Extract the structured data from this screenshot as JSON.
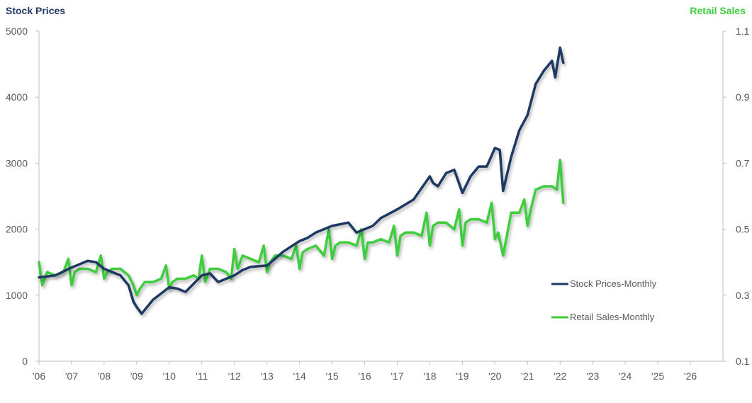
{
  "chart_data": {
    "type": "line",
    "left_axis_title": "Stock Prices",
    "right_axis_title": "Retail Sales",
    "left_ylim": [
      0,
      5000
    ],
    "right_ylim": [
      0.1,
      1.1
    ],
    "left_ticks": [
      "0",
      "1000",
      "2000",
      "3000",
      "4000",
      "5000"
    ],
    "right_ticks": [
      "0.1",
      "0.3",
      "0.5",
      "0.7",
      "0.9",
      "1.1"
    ],
    "x_ticks": [
      "'06",
      "'07",
      "'08",
      "'09",
      "'10",
      "'11",
      "'12",
      "'13",
      "'14",
      "'15",
      "'16",
      "'17",
      "'18",
      "'19",
      "'20",
      "'21",
      "'22",
      "'23",
      "'24",
      "'25",
      "'26"
    ],
    "xlim": [
      2006,
      2027
    ],
    "grid": false,
    "legend_position": "right-middle",
    "series": [
      {
        "name": "Stock Prices-Monthly",
        "axis": "left",
        "color": "#1f3864",
        "x": [
          2006.0,
          2006.5,
          2007.0,
          2007.25,
          2007.5,
          2007.75,
          2008.0,
          2008.25,
          2008.5,
          2008.75,
          2008.9,
          2009.0,
          2009.15,
          2009.5,
          2010.0,
          2010.25,
          2010.5,
          2011.0,
          2011.25,
          2011.5,
          2011.75,
          2012.0,
          2012.25,
          2012.5,
          2013.0,
          2013.5,
          2014.0,
          2014.25,
          2014.5,
          2015.0,
          2015.5,
          2015.75,
          2016.0,
          2016.25,
          2016.5,
          2017.0,
          2017.5,
          2018.0,
          2018.1,
          2018.25,
          2018.5,
          2018.75,
          2019.0,
          2019.25,
          2019.5,
          2019.75,
          2020.0,
          2020.15,
          2020.25,
          2020.5,
          2020.75,
          2021.0,
          2021.25,
          2021.5,
          2021.75,
          2021.85,
          2022.0,
          2022.1
        ],
        "y": [
          1270,
          1300,
          1420,
          1470,
          1520,
          1500,
          1400,
          1350,
          1300,
          1150,
          900,
          820,
          720,
          930,
          1120,
          1100,
          1050,
          1300,
          1330,
          1200,
          1250,
          1300,
          1380,
          1430,
          1450,
          1660,
          1820,
          1870,
          1950,
          2050,
          2100,
          1950,
          2000,
          2050,
          2170,
          2300,
          2450,
          2800,
          2700,
          2650,
          2850,
          2900,
          2550,
          2800,
          2950,
          2950,
          3230,
          3200,
          2580,
          3100,
          3500,
          3730,
          4200,
          4400,
          4550,
          4300,
          4750,
          4520
        ]
      },
      {
        "name": "Retail Sales-Monthly",
        "axis": "right",
        "color": "#3dcd3d",
        "x": [
          2006.0,
          2006.1,
          2006.25,
          2006.5,
          2006.75,
          2006.9,
          2007.0,
          2007.1,
          2007.25,
          2007.5,
          2007.75,
          2007.9,
          2008.0,
          2008.1,
          2008.25,
          2008.5,
          2008.75,
          2008.9,
          2009.0,
          2009.1,
          2009.25,
          2009.5,
          2009.75,
          2009.9,
          2010.0,
          2010.1,
          2010.25,
          2010.5,
          2010.75,
          2010.9,
          2011.0,
          2011.1,
          2011.25,
          2011.5,
          2011.75,
          2011.9,
          2012.0,
          2012.1,
          2012.25,
          2012.5,
          2012.75,
          2012.9,
          2013.0,
          2013.1,
          2013.25,
          2013.5,
          2013.75,
          2013.9,
          2014.0,
          2014.1,
          2014.25,
          2014.5,
          2014.75,
          2014.9,
          2015.0,
          2015.1,
          2015.25,
          2015.5,
          2015.75,
          2015.9,
          2016.0,
          2016.1,
          2016.25,
          2016.5,
          2016.75,
          2016.9,
          2017.0,
          2017.1,
          2017.25,
          2017.5,
          2017.75,
          2017.9,
          2018.0,
          2018.1,
          2018.25,
          2018.5,
          2018.75,
          2018.9,
          2019.0,
          2019.1,
          2019.25,
          2019.5,
          2019.75,
          2019.9,
          2020.0,
          2020.1,
          2020.25,
          2020.5,
          2020.75,
          2020.9,
          2021.0,
          2021.1,
          2021.25,
          2021.5,
          2021.75,
          2021.9,
          2022.0,
          2022.1
        ],
        "y": [
          0.4,
          0.33,
          0.37,
          0.36,
          0.37,
          0.41,
          0.33,
          0.37,
          0.38,
          0.38,
          0.37,
          0.42,
          0.35,
          0.37,
          0.38,
          0.38,
          0.36,
          0.33,
          0.3,
          0.32,
          0.34,
          0.34,
          0.35,
          0.39,
          0.32,
          0.34,
          0.35,
          0.35,
          0.36,
          0.35,
          0.42,
          0.34,
          0.38,
          0.38,
          0.37,
          0.35,
          0.44,
          0.38,
          0.42,
          0.41,
          0.4,
          0.45,
          0.37,
          0.4,
          0.42,
          0.42,
          0.41,
          0.45,
          0.38,
          0.43,
          0.44,
          0.45,
          0.42,
          0.5,
          0.41,
          0.45,
          0.46,
          0.46,
          0.45,
          0.5,
          0.41,
          0.46,
          0.46,
          0.47,
          0.46,
          0.51,
          0.42,
          0.48,
          0.49,
          0.49,
          0.48,
          0.55,
          0.45,
          0.51,
          0.52,
          0.52,
          0.5,
          0.56,
          0.45,
          0.52,
          0.53,
          0.53,
          0.52,
          0.58,
          0.47,
          0.49,
          0.42,
          0.55,
          0.55,
          0.59,
          0.51,
          0.56,
          0.62,
          0.63,
          0.63,
          0.62,
          0.71,
          0.58
        ]
      }
    ]
  }
}
